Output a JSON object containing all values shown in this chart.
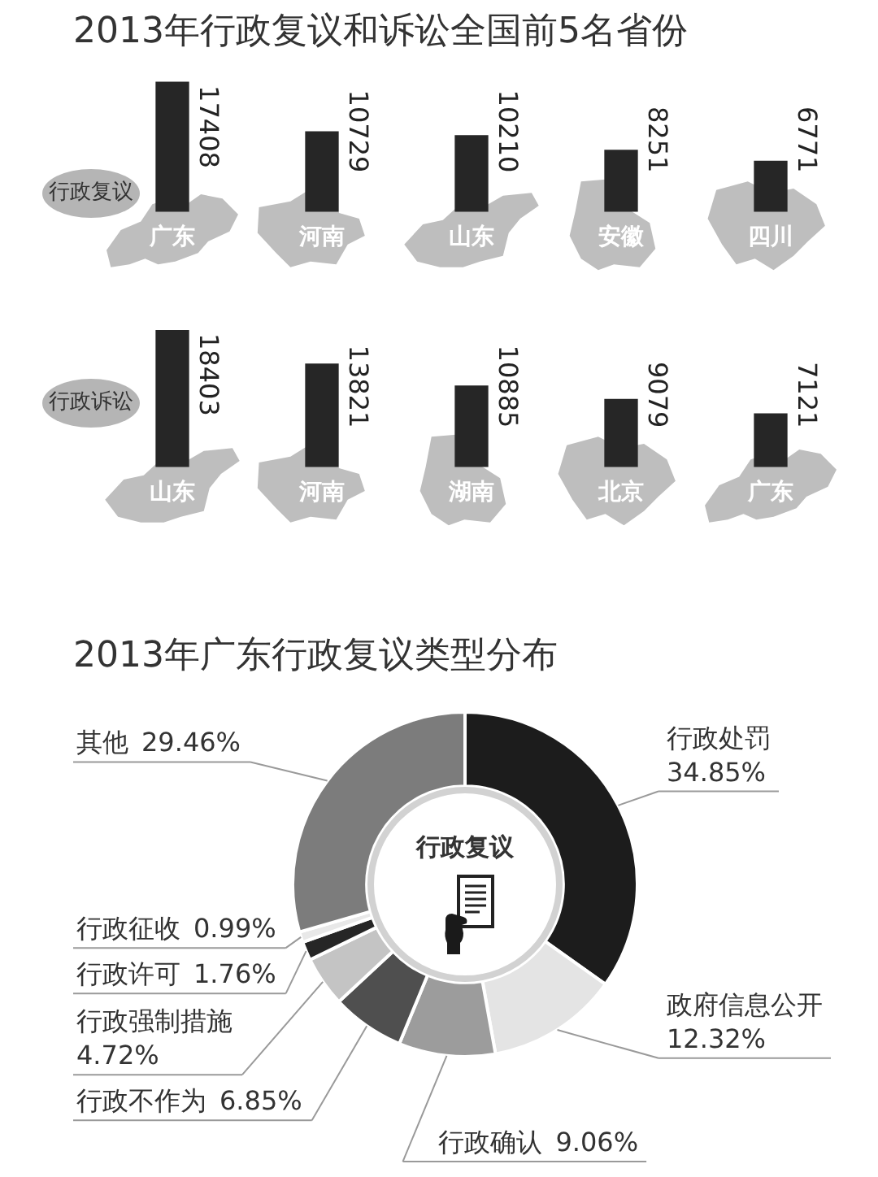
{
  "chart_data": [
    {
      "type": "bar",
      "title": "2013年行政复议和诉讼全国前5名省份",
      "categories": [
        "广东",
        "河南",
        "山东",
        "安徽",
        "四川"
      ],
      "series": [
        {
          "name": "行政复议",
          "color": "#262626",
          "values": [
            17408,
            10729,
            10210,
            8251,
            6771
          ]
        }
      ],
      "data_labels": true
    },
    {
      "type": "bar",
      "categories": [
        "山东",
        "河南",
        "湖南",
        "北京",
        "广东"
      ],
      "series": [
        {
          "name": "行政诉讼",
          "color": "#262626",
          "values": [
            18403,
            13821,
            10885,
            9079,
            7121
          ]
        }
      ],
      "data_labels": true
    },
    {
      "type": "donut",
      "title": "2013年广东行政复议类型分布",
      "categories": [
        "行政处罚",
        "政府信息公开",
        "行政确认",
        "行政不作为",
        "行政强制措施",
        "行政许可",
        "行政征收",
        "其他"
      ],
      "values": [
        34.85,
        12.32,
        9.06,
        6.85,
        4.72,
        1.76,
        0.99,
        29.46
      ],
      "value_labels": [
        "34.85%",
        "12.32%",
        "9.06%",
        "6.85%",
        "4.72%",
        "1.76%",
        "0.99%",
        "29.46%"
      ],
      "colors": [
        "#1c1c1c",
        "#e4e4e4",
        "#9c9c9c",
        "#4f4f4f",
        "#c4c4c4",
        "#262626",
        "#e8e8e8",
        "#7c7c7c"
      ],
      "annotations": [
        "行政复议"
      ]
    }
  ]
}
